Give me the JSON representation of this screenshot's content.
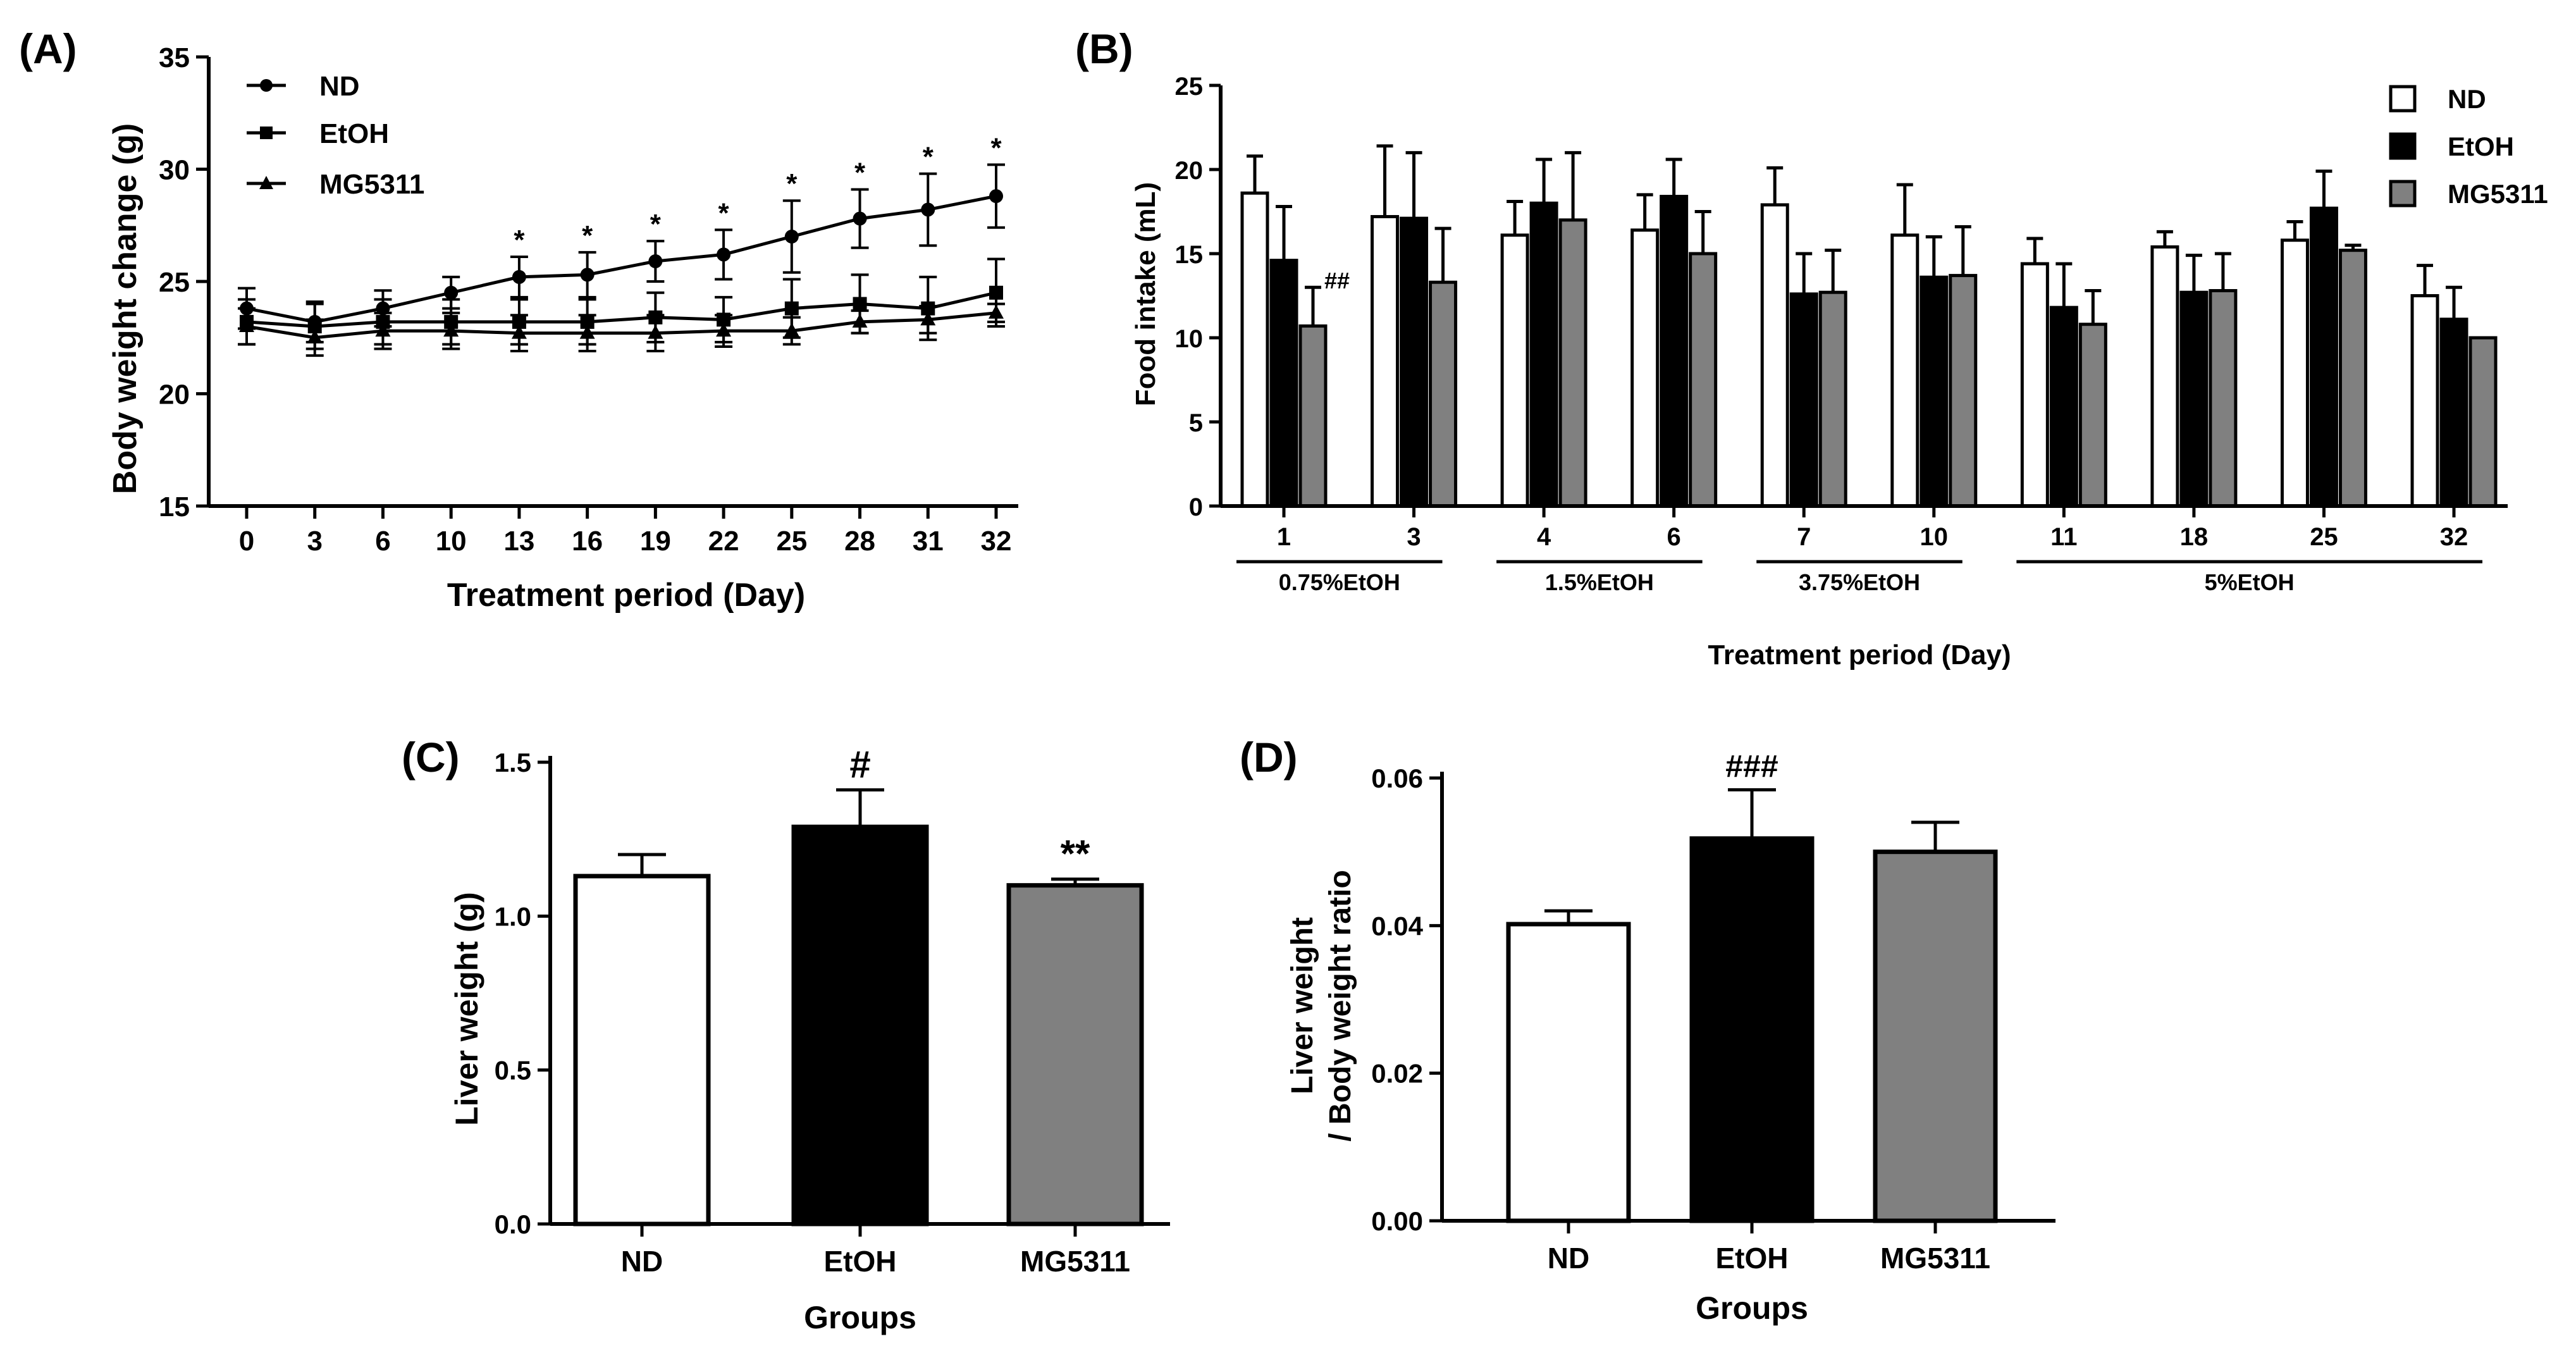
{
  "colors": {
    "nd": "#ffffff",
    "etoh": "#000000",
    "mg5311": "#808080",
    "axis": "#000000"
  },
  "chart_data": [
    {
      "panel": "(A)",
      "type": "line",
      "title": "",
      "xlabel": "Treatment period (Day)",
      "ylabel": "Body weight change (g)",
      "categories": [
        "0",
        "3",
        "6",
        "10",
        "13",
        "16",
        "19",
        "22",
        "25",
        "28",
        "31",
        "32"
      ],
      "ylim": [
        15,
        35
      ],
      "yticks": [
        "15",
        "20",
        "25",
        "30",
        "35"
      ],
      "legend_position": "top-left",
      "series": [
        {
          "name": "ND",
          "marker": "circle",
          "values": [
            23.8,
            23.2,
            23.8,
            24.5,
            25.2,
            25.3,
            25.9,
            26.2,
            27.0,
            27.8,
            28.2,
            28.8
          ],
          "errors": [
            0.9,
            0.9,
            0.8,
            0.7,
            0.9,
            1.0,
            0.9,
            1.1,
            1.6,
            1.3,
            1.6,
            1.4
          ]
        },
        {
          "name": "EtOH",
          "marker": "square",
          "values": [
            23.2,
            23.0,
            23.2,
            23.2,
            23.2,
            23.2,
            23.4,
            23.3,
            23.8,
            24.0,
            23.8,
            24.5
          ],
          "errors": [
            1.0,
            1.0,
            1.0,
            1.0,
            1.0,
            1.0,
            1.1,
            1.0,
            1.3,
            1.3,
            1.4,
            1.5
          ]
        },
        {
          "name": "MG5311",
          "marker": "triangle",
          "values": [
            23.0,
            22.5,
            22.8,
            22.8,
            22.7,
            22.7,
            22.7,
            22.8,
            22.8,
            23.2,
            23.3,
            23.6
          ],
          "errors": [
            0.8,
            0.8,
            0.8,
            0.8,
            0.8,
            0.8,
            0.8,
            0.7,
            0.6,
            0.5,
            0.6,
            0.4
          ]
        }
      ],
      "annotations": [
        "*",
        "*",
        "*",
        "*",
        "*",
        "*",
        "*",
        "*"
      ],
      "annotation_start_index": 4
    },
    {
      "panel": "(B)",
      "type": "bar",
      "title": "",
      "xlabel": "Treatment period (Day)",
      "ylabel": "Food intake (mL)",
      "categories": [
        "1",
        "3",
        "4",
        "6",
        "7",
        "10",
        "11",
        "18",
        "25",
        "32"
      ],
      "ylim": [
        0,
        25
      ],
      "yticks": [
        "0",
        "5",
        "10",
        "15",
        "20",
        "25"
      ],
      "legend_position": "top-right",
      "series": [
        {
          "name": "ND",
          "values": [
            18.6,
            17.2,
            16.1,
            16.4,
            17.9,
            16.1,
            14.4,
            15.4,
            15.8,
            12.5
          ],
          "errors": [
            2.2,
            4.2,
            2.0,
            2.1,
            2.2,
            3.0,
            1.5,
            0.9,
            1.1,
            1.8
          ]
        },
        {
          "name": "EtOH",
          "values": [
            14.6,
            17.1,
            18.0,
            18.4,
            12.6,
            13.6,
            11.8,
            12.7,
            17.7,
            11.1
          ],
          "errors": [
            3.2,
            3.9,
            2.6,
            2.2,
            2.4,
            2.4,
            2.6,
            2.2,
            2.2,
            1.9
          ]
        },
        {
          "name": "MG5311",
          "values": [
            10.7,
            13.3,
            17.0,
            15.0,
            12.7,
            13.7,
            10.8,
            12.8,
            15.2,
            10.0
          ],
          "errors": [
            2.3,
            3.2,
            4.0,
            2.5,
            2.5,
            2.9,
            2.0,
            2.2,
            0.3,
            0.0
          ]
        }
      ],
      "bar_annotation": {
        "label": "##",
        "category_index": 0,
        "series_index": 2
      },
      "groups": [
        {
          "label": "0.75%EtOH",
          "from": 0,
          "to": 1
        },
        {
          "label": "1.5%EtOH",
          "from": 2,
          "to": 3
        },
        {
          "label": "3.75%EtOH",
          "from": 4,
          "to": 5
        },
        {
          "label": "5%EtOH",
          "from": 6,
          "to": 9
        }
      ]
    },
    {
      "panel": "(C)",
      "type": "bar",
      "title": "",
      "xlabel": "Groups",
      "ylabel": "Liver weight (g)",
      "categories": [
        "ND",
        "EtOH",
        "MG5311"
      ],
      "values": [
        1.13,
        1.29,
        1.1
      ],
      "errors": [
        0.07,
        0.12,
        0.02
      ],
      "ylim": [
        0,
        1.5
      ],
      "yticks": [
        "0.0",
        "0.5",
        "1.0",
        "1.5"
      ],
      "annotations": [
        "",
        "#",
        "**"
      ]
    },
    {
      "panel": "(D)",
      "type": "bar",
      "title": "",
      "xlabel": "Groups",
      "ylabel_line1": "Liver weight",
      "ylabel_line2": "/ Body weight ratio",
      "categories": [
        "ND",
        "EtOH",
        "MG5311"
      ],
      "values": [
        0.0402,
        0.0518,
        0.05
      ],
      "errors": [
        0.0018,
        0.0066,
        0.004
      ],
      "ylim": [
        0,
        0.06
      ],
      "yticks": [
        "0.00",
        "0.02",
        "0.04",
        "0.06"
      ],
      "annotations": [
        "",
        "###",
        ""
      ]
    }
  ]
}
